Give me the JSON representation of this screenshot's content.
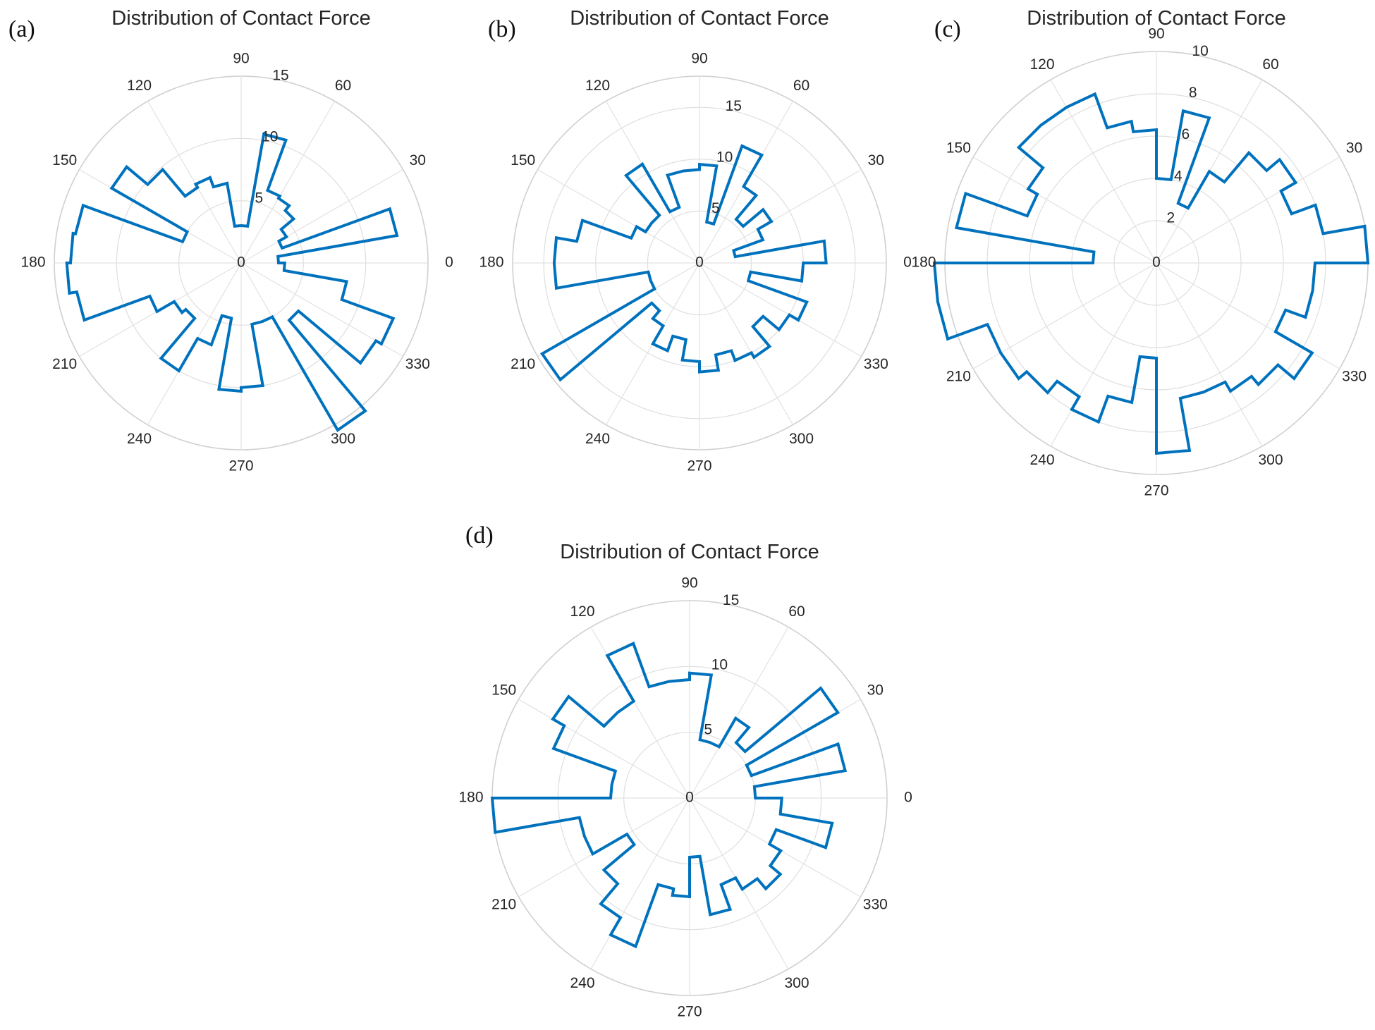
{
  "colors": {
    "series": "#0072BD",
    "grid": "#dedede",
    "text": "#262626"
  },
  "chart_data": [
    {
      "panel_label": "(a)",
      "type": "polar-histogram",
      "title": "Distribution of Contact Force",
      "theta_ticks": [
        "0",
        "30",
        "60",
        "90",
        "120",
        "150",
        "180",
        "210",
        "240",
        "270",
        "300",
        "330"
      ],
      "r_ticks": [
        "0",
        "5",
        "10",
        "15"
      ],
      "rlim": [
        0,
        15
      ],
      "r_tick_angle_deg": 80,
      "grid": true,
      "bin_width_deg": 10,
      "bins_start_deg": [
        0,
        10,
        20,
        30,
        40,
        50,
        60,
        70,
        80,
        90,
        100,
        110,
        120,
        130,
        140,
        150,
        160,
        170,
        180,
        190,
        200,
        210,
        220,
        230,
        240,
        250,
        260,
        270,
        280,
        290,
        300,
        310,
        320,
        330,
        340,
        350
      ],
      "values": [
        3.0,
        12.7,
        3.5,
        4.2,
        5.5,
        6.0,
        6.2,
        10.5,
        3.0,
        3.0,
        6.5,
        7.3,
        7.0,
        9.8,
        12.0,
        5.0,
        13.5,
        13.7,
        14.0,
        13.4,
        7.8,
        6.2,
        5.8,
        10.0,
        7.0,
        4.5,
        10.3,
        10.0,
        5.0,
        5.0,
        15.5,
        6.0,
        12.5,
        13.0,
        8.6,
        3.5
      ]
    },
    {
      "panel_label": "(b)",
      "type": "polar-histogram",
      "title": "Distribution of Contact Force",
      "theta_ticks": [
        "0",
        "30",
        "60",
        "90",
        "120",
        "150",
        "180",
        "210",
        "240",
        "270",
        "300",
        "330"
      ],
      "r_ticks": [
        "0",
        "5",
        "10",
        "15"
      ],
      "rlim": [
        0,
        18
      ],
      "r_tick_angle_deg": 80,
      "grid": true,
      "bin_width_deg": 10,
      "bins_start_deg": [
        0,
        10,
        20,
        30,
        40,
        50,
        60,
        70,
        80,
        90,
        100,
        110,
        120,
        130,
        140,
        150,
        160,
        170,
        180,
        190,
        200,
        210,
        220,
        230,
        240,
        250,
        260,
        270,
        280,
        290,
        300,
        310,
        320,
        330,
        340,
        350
      ],
      "values": [
        12.2,
        3.5,
        6.5,
        8.0,
        5.5,
        8.5,
        12.0,
        4.0,
        9.5,
        9.0,
        9.0,
        5.7,
        11.0,
        6.0,
        6.0,
        7.0,
        12.0,
        14.0,
        14.0,
        5.0,
        5.0,
        17.5,
        6.0,
        7.0,
        9.0,
        7.5,
        9.5,
        10.5,
        9.0,
        10.0,
        10.5,
        8.0,
        10.0,
        11.0,
        5.0,
        10.0
      ]
    },
    {
      "panel_label": "(c)",
      "type": "polar-histogram",
      "title": "Distribution of Contact Force",
      "theta_ticks": [
        "0",
        "30",
        "60",
        "90",
        "120",
        "150",
        "180",
        "210",
        "240",
        "270",
        "300",
        "330"
      ],
      "r_ticks": [
        "0",
        "2",
        "4",
        "6",
        "8",
        "10"
      ],
      "rlim": [
        0,
        10
      ],
      "r_tick_angle_deg": 80,
      "grid": true,
      "bin_width_deg": 10,
      "bins_start_deg": [
        0,
        10,
        20,
        30,
        40,
        50,
        60,
        70,
        80,
        90,
        100,
        110,
        120,
        130,
        140,
        150,
        160,
        170,
        180,
        190,
        200,
        210,
        220,
        230,
        240,
        250,
        260,
        270,
        280,
        290,
        300,
        310,
        320,
        330,
        340,
        350
      ],
      "values": [
        10.0,
        8.0,
        6.8,
        7.6,
        6.8,
        5.0,
        3.0,
        7.3,
        4.0,
        6.3,
        6.8,
        8.5,
        8.5,
        8.5,
        7.0,
        6.5,
        9.6,
        3.0,
        10.5,
        10.5,
        8.5,
        8.5,
        8.0,
        7.3,
        8.0,
        6.7,
        4.5,
        9.0,
        6.5,
        6.5,
        7.0,
        7.5,
        8.5,
        6.5,
        7.5,
        7.5
      ]
    },
    {
      "panel_label": "(d)",
      "type": "polar-histogram",
      "title": "Distribution of Contact Force",
      "theta_ticks": [
        "0",
        "30",
        "60",
        "90",
        "120",
        "150",
        "180",
        "210",
        "240",
        "270",
        "300",
        "330"
      ],
      "r_ticks": [
        "0",
        "5",
        "10",
        "15"
      ],
      "rlim": [
        0,
        15
      ],
      "r_tick_angle_deg": 80,
      "grid": true,
      "bin_width_deg": 10,
      "bins_start_deg": [
        0,
        10,
        20,
        30,
        40,
        50,
        60,
        70,
        80,
        90,
        100,
        110,
        120,
        130,
        140,
        150,
        160,
        170,
        180,
        190,
        200,
        210,
        220,
        230,
        240,
        250,
        260,
        270,
        280,
        290,
        300,
        310,
        320,
        330,
        340,
        350
      ],
      "values": [
        5.0,
        12.0,
        5.0,
        13.0,
        5.5,
        7.0,
        4.5,
        4.5,
        9.5,
        9.0,
        9.0,
        12.5,
        8.5,
        8.5,
        12.0,
        11.0,
        6.0,
        6.0,
        15.0,
        8.5,
        8.5,
        5.5,
        8.5,
        10.5,
        12.0,
        7.0,
        7.5,
        4.5,
        9.0,
        7.0,
        8.0,
        9.0,
        8.0,
        7.0,
        11.0,
        7.0
      ]
    }
  ]
}
